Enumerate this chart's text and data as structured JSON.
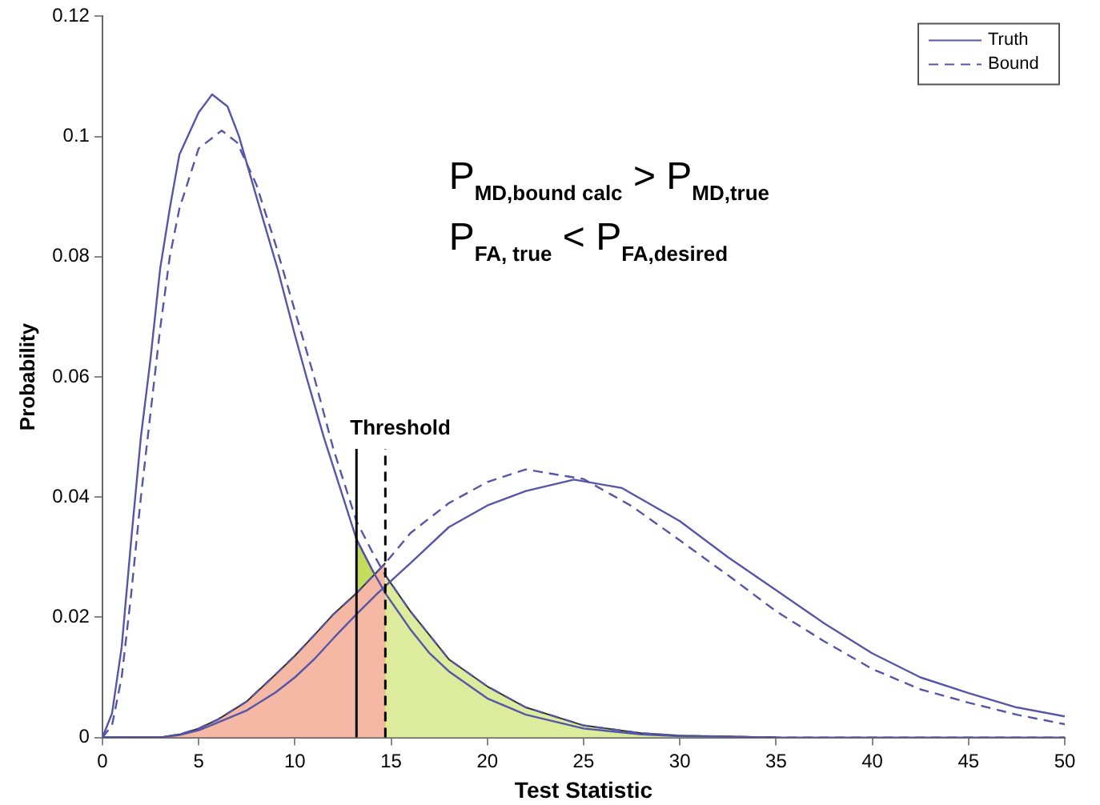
{
  "chart_data": {
    "type": "line",
    "xlabel": "Test Statistic",
    "ylabel": "Probability",
    "xlim": [
      0,
      50
    ],
    "xticks": [
      0,
      5,
      10,
      15,
      20,
      25,
      30,
      35,
      40,
      45,
      50
    ],
    "ylim": [
      0,
      0.12
    ],
    "yticks": [
      0,
      0.02,
      0.04,
      0.06,
      0.08,
      0.1,
      0.12
    ],
    "grid": false,
    "legend": "top right",
    "marker": "none",
    "annotations": [
      "P$_{MD,bound calc}$ > P$_{MD,true}$",
      "P$_{FA, true}$ < P$_{FA,desired}$"
    ],
    "ref_lines": [
      {
        "axis": "x",
        "value": 13.2,
        "label": "Threshold",
        "color": "#000000",
        "line_style": "solid"
      },
      {
        "axis": "x",
        "value": 14.7,
        "color": "#000000",
        "line_style": "dashed"
      }
    ],
    "series": [
      {
        "type": "area",
        "color": "#f4b8a4",
        "x": [
          0,
          3,
          4,
          5,
          6,
          7.5,
          9,
          10,
          11,
          12,
          13.2,
          14.7
        ],
        "values": [
          0,
          0,
          0.0005,
          0.0015,
          0.003,
          0.006,
          0.0105,
          0.0136,
          0.017,
          0.0205,
          0.024,
          0.029
        ]
      },
      {
        "type": "area",
        "color": "#f07050",
        "x": [
          0,
          3,
          4,
          5,
          6,
          7.5,
          9,
          10,
          11,
          12,
          13.2
        ],
        "values": [
          0,
          0,
          0.0004,
          0.0012,
          0.0025,
          0.0045,
          0.0075,
          0.01,
          0.013,
          0.0165,
          0.0205
        ]
      },
      {
        "type": "area",
        "color": "#dcec9c",
        "x": [
          14.7,
          16,
          17,
          18,
          20,
          22,
          25,
          28,
          30,
          35
        ],
        "values": [
          0.027,
          0.021,
          0.017,
          0.013,
          0.0085,
          0.005,
          0.002,
          0.0007,
          0.0003,
          0
        ]
      },
      {
        "type": "area",
        "color": "#c4dc5c",
        "x": [
          13.2,
          14,
          14.7,
          16,
          17,
          18,
          20,
          22,
          25,
          28,
          30,
          35
        ],
        "values": [
          0.033,
          0.028,
          0.024,
          0.018,
          0.014,
          0.011,
          0.0065,
          0.0038,
          0.0015,
          0.0005,
          0.0002,
          0
        ]
      },
      {
        "name": "Truth",
        "color": "#5656a8",
        "line_style": "solid",
        "x": [
          0,
          0.5,
          1,
          1.5,
          2,
          2.5,
          3,
          3.5,
          4,
          5,
          5.7,
          6.5,
          7.1,
          8,
          9.1,
          10,
          10.6,
          11.5,
          12.5,
          13.2,
          14,
          14.7,
          16,
          17,
          18,
          20,
          22,
          25,
          28,
          30,
          35,
          40,
          50
        ],
        "values": [
          0,
          0.004,
          0.015,
          0.033,
          0.05,
          0.063,
          0.078,
          0.088,
          0.097,
          0.104,
          0.107,
          0.105,
          0.1,
          0.09,
          0.078,
          0.067,
          0.06,
          0.05,
          0.04,
          0.033,
          0.028,
          0.024,
          0.018,
          0.014,
          0.011,
          0.0065,
          0.0038,
          0.0015,
          0.0005,
          0.0002,
          0,
          0,
          0
        ]
      },
      {
        "color": "#5656a8",
        "line_style": "solid",
        "x": [
          0,
          3,
          4,
          5,
          6,
          7.5,
          9,
          10,
          11,
          12,
          13.2,
          14.3,
          16,
          18,
          20,
          22,
          24.5,
          27,
          30,
          32.5,
          35,
          37.5,
          40,
          42.5,
          45,
          47.5,
          50
        ],
        "values": [
          0,
          0,
          0.0004,
          0.0012,
          0.0025,
          0.0045,
          0.0075,
          0.01,
          0.013,
          0.0165,
          0.0205,
          0.024,
          0.029,
          0.035,
          0.0386,
          0.041,
          0.0429,
          0.0415,
          0.036,
          0.03,
          0.0245,
          0.019,
          0.014,
          0.01,
          0.0074,
          0.005,
          0.0035
        ]
      },
      {
        "name": "Bound",
        "color": "#5656a8",
        "line_style": "dashed",
        "x": [
          0,
          0.5,
          1,
          1.5,
          2,
          2.5,
          3,
          3.5,
          4,
          5,
          6.2,
          7,
          8,
          9,
          10,
          11,
          12,
          13.2,
          14,
          14.7,
          16,
          17,
          18,
          20,
          22,
          25,
          28,
          30,
          35,
          40,
          50
        ],
        "values": [
          0,
          0.002,
          0.01,
          0.024,
          0.04,
          0.054,
          0.068,
          0.08,
          0.088,
          0.098,
          0.101,
          0.099,
          0.092,
          0.082,
          0.071,
          0.06,
          0.048,
          0.036,
          0.031,
          0.027,
          0.021,
          0.017,
          0.013,
          0.0085,
          0.005,
          0.002,
          0.0007,
          0.0003,
          0,
          0,
          0
        ]
      },
      {
        "color": "#5656a8",
        "line_style": "dashed",
        "x": [
          0,
          3,
          4,
          5,
          6,
          7.5,
          9,
          10,
          11,
          12,
          13.2,
          14.7,
          16,
          18,
          20,
          22,
          25,
          27.5,
          30,
          32.5,
          35,
          37.5,
          40,
          42.5,
          45,
          47.5,
          50
        ],
        "values": [
          0,
          0,
          0.0005,
          0.0015,
          0.003,
          0.006,
          0.0105,
          0.0136,
          0.017,
          0.0205,
          0.024,
          0.029,
          0.034,
          0.039,
          0.0425,
          0.0446,
          0.043,
          0.0385,
          0.0328,
          0.027,
          0.021,
          0.016,
          0.0114,
          0.008,
          0.0058,
          0.0038,
          0.0022
        ]
      }
    ]
  }
}
